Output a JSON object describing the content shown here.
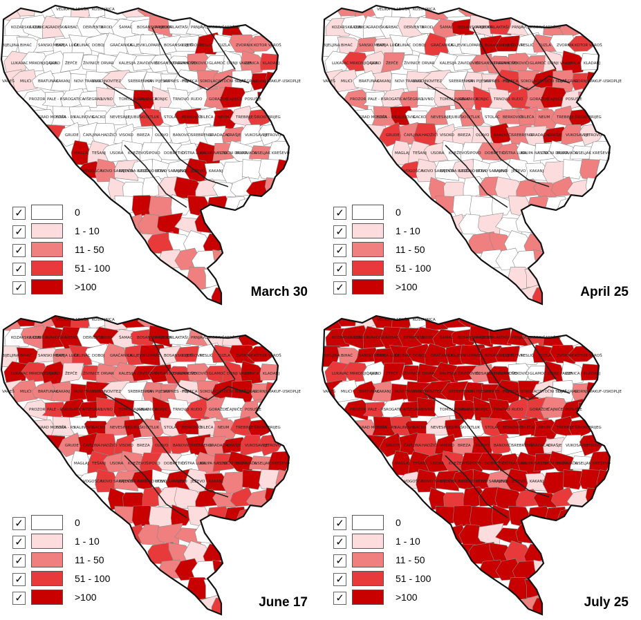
{
  "legend": {
    "items": [
      {
        "label": "0",
        "color": "#ffffff",
        "checked": "✓"
      },
      {
        "label": "1 - 10",
        "color": "#fcdcdc",
        "checked": "✓"
      },
      {
        "label": "11 - 50",
        "color": "#f08080",
        "checked": "✓"
      },
      {
        "label": "51 - 100",
        "color": "#e83a3a",
        "checked": "✓"
      },
      {
        "label": ">100",
        "color": "#c80000",
        "checked": "✓"
      }
    ]
  },
  "panels": [
    {
      "date": "March 30",
      "levels_distribution": [
        0.62,
        0.12,
        0.16,
        0.07,
        0.03
      ]
    },
    {
      "date": "April 25",
      "levels_distribution": [
        0.3,
        0.18,
        0.25,
        0.17,
        0.1
      ]
    },
    {
      "date": "June 17",
      "levels_distribution": [
        0.12,
        0.12,
        0.22,
        0.24,
        0.3
      ]
    },
    {
      "date": "July 25",
      "levels_distribution": [
        0.05,
        0.04,
        0.07,
        0.14,
        0.7
      ]
    }
  ],
  "place_labels": [
    "VELIKA KLADUŠA",
    "KOSTAJNICA",
    "KOZARSKA DUBICA",
    "CAZIN",
    "GRADIŠKA",
    "SRBAC",
    "DERVENTA",
    "BROD",
    "ŠAMAC",
    "BOSANSKA KRUPA",
    "PRIJEDOR",
    "LAKTAŠI",
    "PRNJAVOR",
    "MODRIČA",
    "BRČKO",
    "BIJELJINA",
    "BIHAĆ",
    "SANSKI MOST",
    "BANJA LUKA",
    "ČELINAC",
    "DOBOJ",
    "GRAČANICA",
    "UGLJEVIK",
    "LOPARE",
    "BOSANSKI PETROVAC",
    "KLJUČ",
    "TESLIĆ",
    "TUZLA",
    "ZVORNIK",
    "KOTOR VAROŠ",
    "LUKAVAC",
    "MRKONJIĆ GRAD",
    "JAJCE",
    "ŽEPČE",
    "ŽIVINICE",
    "DRVAR",
    "KALESIJA",
    "ZAVIDOVIĆI",
    "BOSANSKO GRAHOVO",
    "TRAVNIK",
    "ŠEKOVIĆI",
    "GLAMOČ",
    "DONJI VAKUF",
    "ZENICA",
    "KLADANJ",
    "VAREŠ",
    "MILIĆI",
    "BRATUNAC",
    "KAKANJ",
    "NOVI TRAVNIK",
    "BUGOJNO",
    "VITEZ",
    "SREBRENICA",
    "HAN PIJESAK",
    "KUPRES - FBiH",
    "FOJNICA",
    "SOKOLAC",
    "ISTOČNI STARI GRAD",
    "ILIJAŠ",
    "GORNJI VAKUF-USKOPLJE",
    "PROZOR",
    "PALE - RS",
    "ROGATICA",
    "VIŠEGRAD",
    "LIVNO",
    "TOMISLAVGRAD",
    "JABLANICA",
    "KONJIC",
    "TRNOVO",
    "RUDO",
    "GORAŽDE",
    "ČAJNIČE",
    "POSUŠJE",
    "GRAD MOSTAR",
    "FOČA - RS",
    "KALINOVIK",
    "GACKO",
    "NEVESINJE",
    "LJUBUŠKI",
    "ČITLUK",
    "STOLAC",
    "BERKOVIĆI",
    "BILEĆA",
    "NEUM",
    "TREBINJE",
    "ŠIROKI BRIJEG",
    "GRUDE",
    "ČAPLJINA",
    "HADŽIĆI",
    "VISOKO",
    "BREZA",
    "OLOVO",
    "BANOVIĆI",
    "SREBRENIK",
    "GRADAČAC",
    "ORAŠJE",
    "VUKOSAVLJE",
    "PETROVO",
    "MAGLAJ",
    "TEŠANJ",
    "USORA",
    "KNEŽEVO",
    "ŠIPOVO",
    "DOBRETIĆI",
    "OŠTRA LUKA",
    "KRUPA NA UNI",
    "ISTOČNI DRVAR",
    "BUSOVAČA",
    "KISELJAK",
    "KREŠEVO",
    "VOGOŠĆA",
    "NOVO SARAJEVO",
    "ISTOČNA ILIDŽA",
    "ISTOČNO NOVO SARAJEVO",
    "UTEN",
    "RAVNO",
    "JEŽEVO",
    "KAKANJ"
  ]
}
